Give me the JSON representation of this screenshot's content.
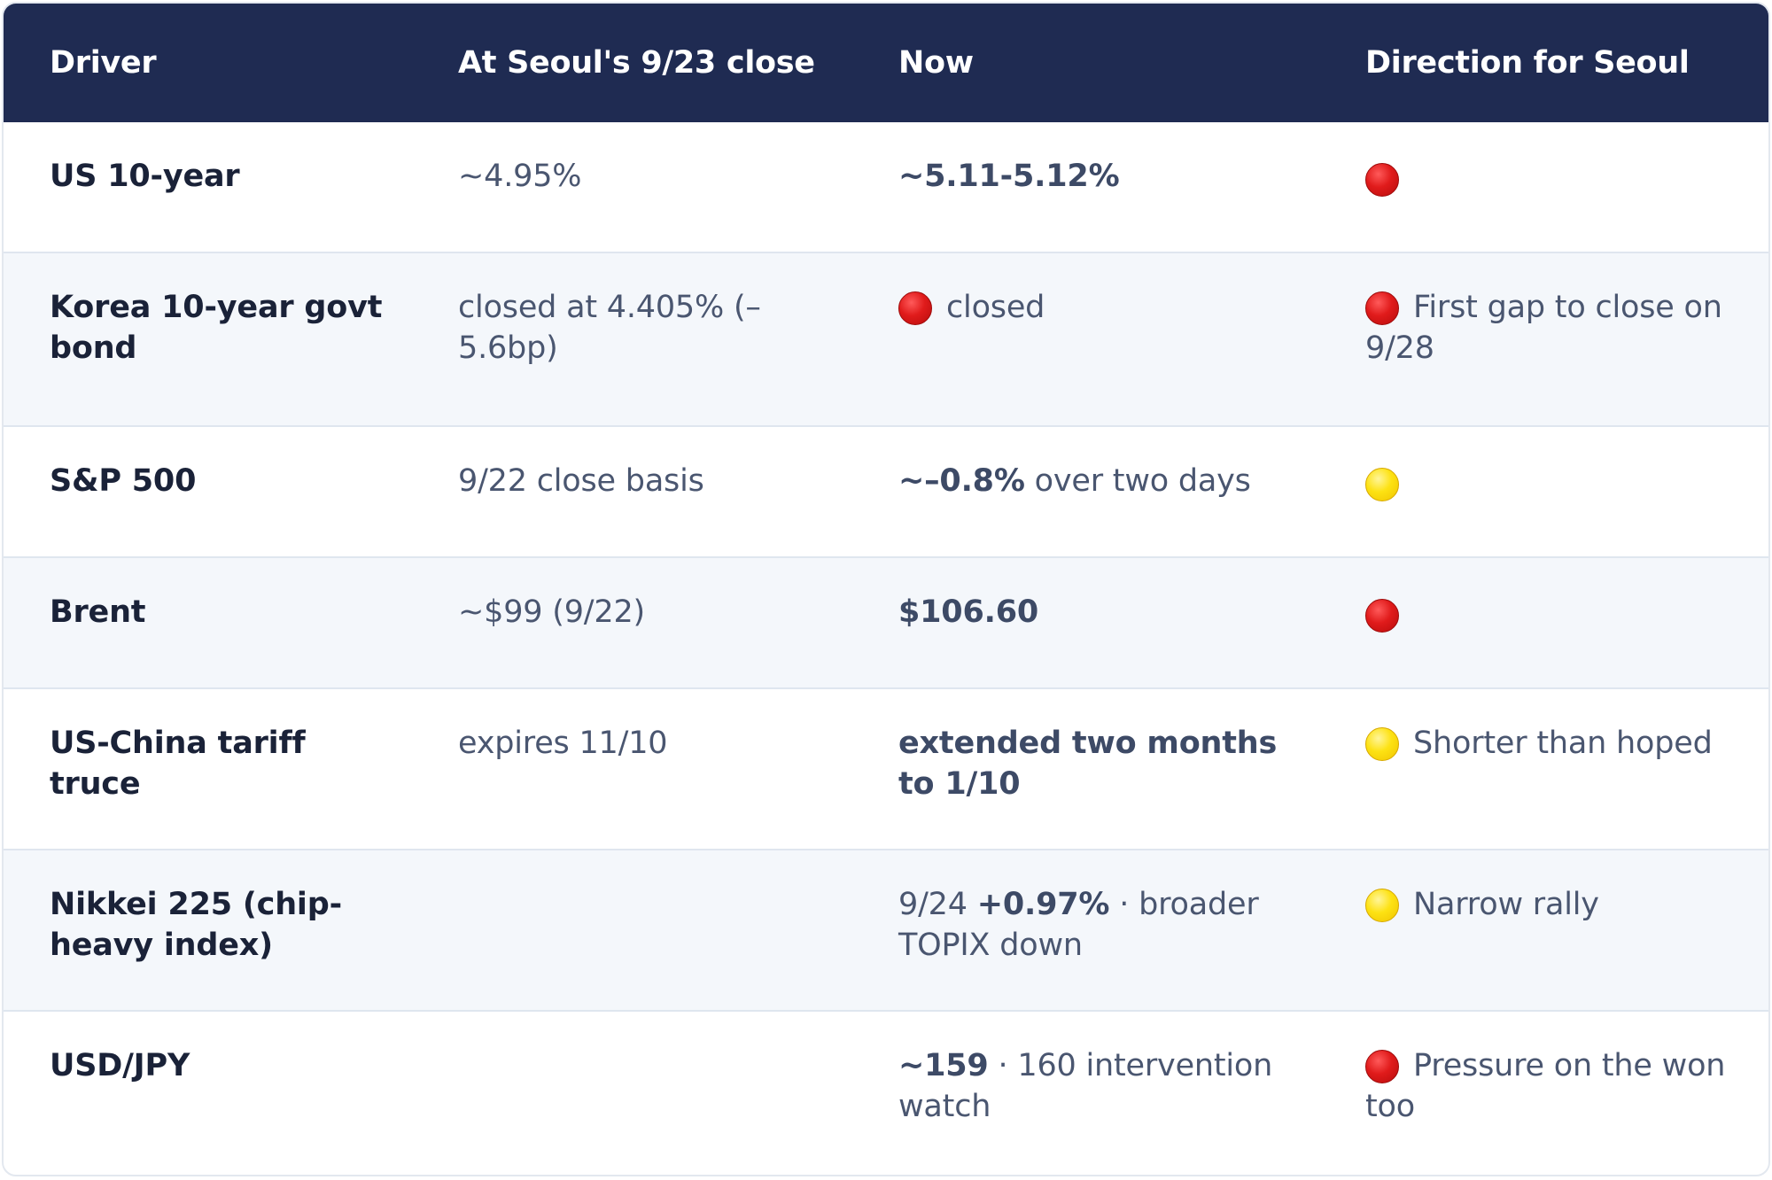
{
  "table": {
    "headers": {
      "driver": "Driver",
      "at_close": "At Seoul's 9/23 close",
      "now": "Now",
      "direction": "Direction for Seoul"
    },
    "rows": [
      {
        "driver": "US 10-year",
        "at_close": "~4.95%",
        "now_bold": "~5.11-5.12%",
        "direction_icon": "red-circle",
        "direction_text": ""
      },
      {
        "driver": "Korea 10-year govt bond",
        "at_close": "closed at 4.405% (–5.6bp)",
        "now_icon": "red-circle",
        "now_text": "closed",
        "direction_icon": "red-circle",
        "direction_text": "First gap to close on 9/28"
      },
      {
        "driver": "S&P 500",
        "at_close": "9/22 close basis",
        "now_bold": "~–0.8%",
        "now_text": " over two days",
        "direction_icon": "yellow-circle",
        "direction_text": ""
      },
      {
        "driver": "Brent",
        "at_close": "~$99 (9/22)",
        "now_bold": "$106.60",
        "direction_icon": "red-circle",
        "direction_text": ""
      },
      {
        "driver": "US-China tariff truce",
        "at_close": "expires 11/10",
        "now_bold": "extended two months to 1/10",
        "direction_icon": "yellow-circle",
        "direction_text": "Shorter than hoped"
      },
      {
        "driver": "Nikkei 225 (chip-heavy index)",
        "at_close": "",
        "now_prefix": "9/24 ",
        "now_bold": "+0.97%",
        "now_text": " · broader TOPIX down",
        "direction_icon": "yellow-circle",
        "direction_text": "Narrow rally"
      },
      {
        "driver": "USD/JPY",
        "at_close": "",
        "now_bold": "~159",
        "now_text": " · 160 intervention watch",
        "direction_icon": "red-circle",
        "direction_text": "Pressure on the won too"
      }
    ]
  },
  "colors": {
    "header_bg": "#1f2b52",
    "alt_row_bg": "#f4f7fb",
    "red_signal": "#e01b1b",
    "yellow_signal": "#fde213"
  }
}
